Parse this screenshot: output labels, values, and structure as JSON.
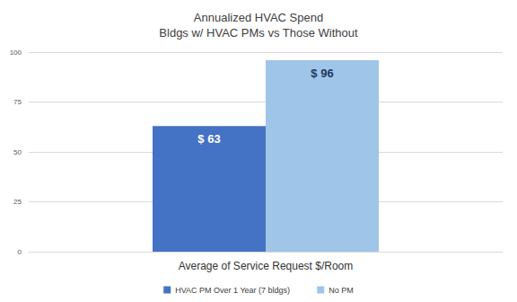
{
  "chart_data": {
    "type": "bar",
    "title": "Annualized HVAC Spend\nBldgs w/ HVAC PMs vs Those Without",
    "categories": [
      "Average of Service Request $/Room"
    ],
    "series": [
      {
        "name": "HVAC PM Over 1 Year (7 bldgs)",
        "color": "#4472c4",
        "values": [
          63
        ],
        "value_labels": [
          "$ 63"
        ]
      },
      {
        "name": "No PM",
        "color": "#9fc5e8",
        "values": [
          96
        ],
        "value_labels": [
          "$ 96"
        ]
      }
    ],
    "ylim": [
      0,
      100
    ],
    "yticks": [
      0,
      25,
      50,
      75,
      100
    ],
    "grid": true,
    "legend": "bottom",
    "data_labels": true
  }
}
